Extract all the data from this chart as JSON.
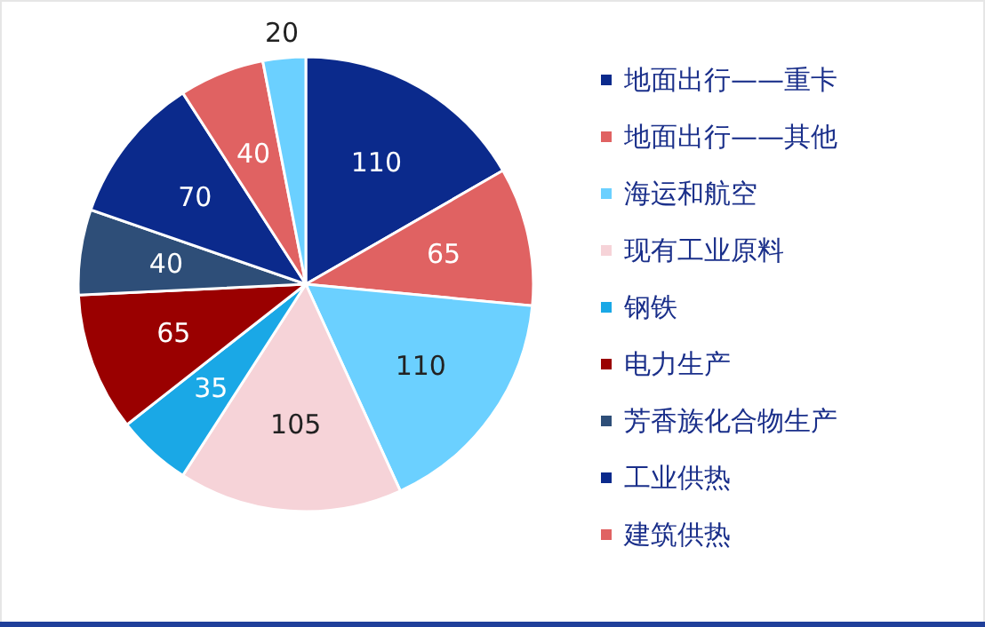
{
  "chart_data": {
    "type": "pie",
    "categories": [
      "地面出行——重卡",
      "地面出行——其他",
      "海运和航空",
      "现有工业原料",
      "钢铁",
      "电力生产",
      "芳香族化合物生产",
      "工业供热",
      "建筑供热",
      null
    ],
    "values": [
      110,
      65,
      110,
      105,
      35,
      65,
      40,
      70,
      40,
      20
    ],
    "colors": [
      "#0b2a8c",
      "#e06262",
      "#6bd0ff",
      "#f6d3d8",
      "#1aa8e6",
      "#9a0000",
      "#2e4e78",
      "#0b2a8c",
      "#e06262",
      "#6bd0ff"
    ],
    "data_labels": true,
    "legend": "right"
  }
}
